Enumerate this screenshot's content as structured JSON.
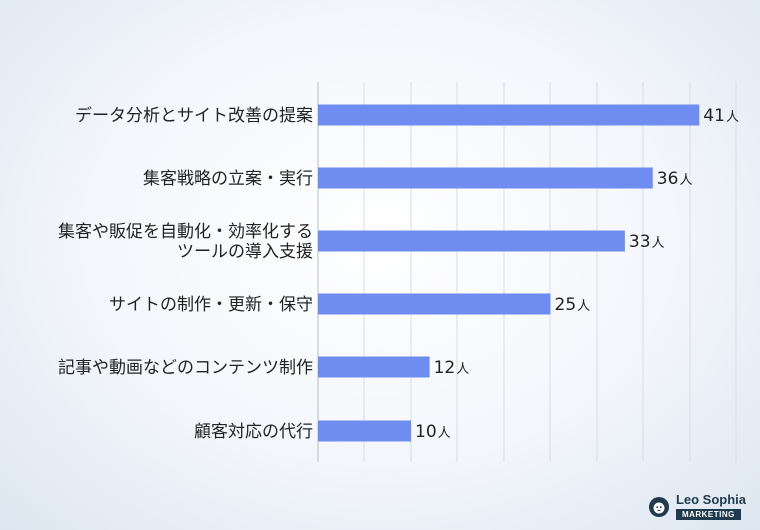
{
  "chart_data": {
    "type": "bar",
    "orientation": "horizontal",
    "categories": [
      [
        "データ分析とサイト改善の提案"
      ],
      [
        "集客戦略の立案・実行"
      ],
      [
        "集客や販促を自動化・効率化する",
        "ツールの導入支援"
      ],
      [
        "サイトの制作・更新・保守"
      ],
      [
        "記事や動画などのコンテンツ制作"
      ],
      [
        "顧客対応の代行"
      ]
    ],
    "values": [
      41,
      36,
      33,
      25,
      12,
      10
    ],
    "unit": "人",
    "xlim": [
      0,
      45
    ],
    "grid": true,
    "bar_color": "#6f8df0"
  },
  "logo": {
    "name": "Leo Sophia",
    "tag": "MARKETING",
    "color": "#1f3b4d"
  }
}
